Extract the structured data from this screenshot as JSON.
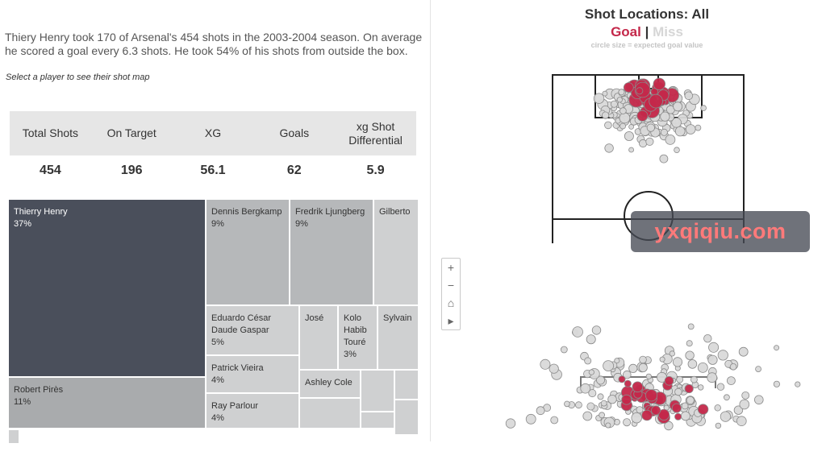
{
  "summary": "Thiery Henry took 170 of Arsenal's 454 shots in the 2003-2004 season. On average he scored a goal every 6.3 shots. He took 54% of his shots from outside the box.",
  "hint": "Select a player to see their shot map",
  "stats": [
    {
      "label": "Total Shots",
      "value": "454"
    },
    {
      "label": "On Target",
      "value": "196"
    },
    {
      "label": "XG",
      "value": "56.1"
    },
    {
      "label": "Goals",
      "value": "62"
    },
    {
      "label": "xg Shot Differential",
      "value": "5.9"
    }
  ],
  "treemap": {
    "colors": {
      "selected": "#4a4f5b",
      "dark": "#a9abad",
      "mid": "#b6b8ba",
      "light": "#cfd0d1"
    },
    "tiles": [
      {
        "name": "Thierry Henry",
        "pct": "37%",
        "share": 37,
        "shade": "selected"
      },
      {
        "name": "Robert Pirès",
        "pct": "11%",
        "share": 11,
        "shade": "dark"
      },
      {
        "name": "Dennis Bergkamp",
        "pct": "9%",
        "share": 9,
        "shade": "mid"
      },
      {
        "name": "Fredrik Ljungberg",
        "pct": "9%",
        "share": 9,
        "shade": "mid"
      },
      {
        "name": "Gilberto",
        "pct": "",
        "share": 5,
        "shade": "light"
      },
      {
        "name": "Eduardo César Daude Gaspar",
        "pct": "5%",
        "share": 5,
        "shade": "light"
      },
      {
        "name": "José",
        "pct": "",
        "share": 3,
        "shade": "light"
      },
      {
        "name": "Kolo Habib Touré",
        "pct": "3%",
        "share": 3,
        "shade": "light"
      },
      {
        "name": "Sylvain",
        "pct": "",
        "share": 3,
        "shade": "light"
      },
      {
        "name": "Patrick Vieira",
        "pct": "4%",
        "share": 4,
        "shade": "light"
      },
      {
        "name": "Ashley Cole",
        "pct": "",
        "share": 2,
        "shade": "light"
      },
      {
        "name": "Ray Parlour",
        "pct": "4%",
        "share": 4,
        "shade": "light"
      },
      {
        "name": "",
        "pct": "",
        "share": 1,
        "shade": "light"
      },
      {
        "name": "",
        "pct": "",
        "share": 1,
        "shade": "light"
      },
      {
        "name": "",
        "pct": "",
        "share": 1,
        "shade": "light"
      },
      {
        "name": "",
        "pct": "",
        "share": 1,
        "shade": "light"
      },
      {
        "name": "",
        "pct": "",
        "share": 1,
        "shade": "light"
      },
      {
        "name": "",
        "pct": "",
        "share": 1,
        "shade": "light"
      },
      {
        "name": "",
        "pct": "",
        "share": 1,
        "shade": "light"
      },
      {
        "name": "",
        "pct": "",
        "share": 1,
        "shade": "light"
      }
    ]
  },
  "chart_data": {
    "type": "scatter",
    "title": "Shot Locations: All",
    "legend": {
      "goal": "Goal",
      "sep": "|",
      "miss": "Miss"
    },
    "note": "circle size = expected goal value",
    "colors": {
      "goal": "#c4284a",
      "miss": "#d9d9d9",
      "line": "#222222"
    },
    "series": [
      {
        "name": "Goal",
        "count": 62
      },
      {
        "name": "Miss",
        "count": 392
      }
    ]
  },
  "zoom": {
    "in": "+",
    "out": "−",
    "home": "⌂",
    "expand": "▸"
  },
  "watermark": "yxqiqiu.com"
}
